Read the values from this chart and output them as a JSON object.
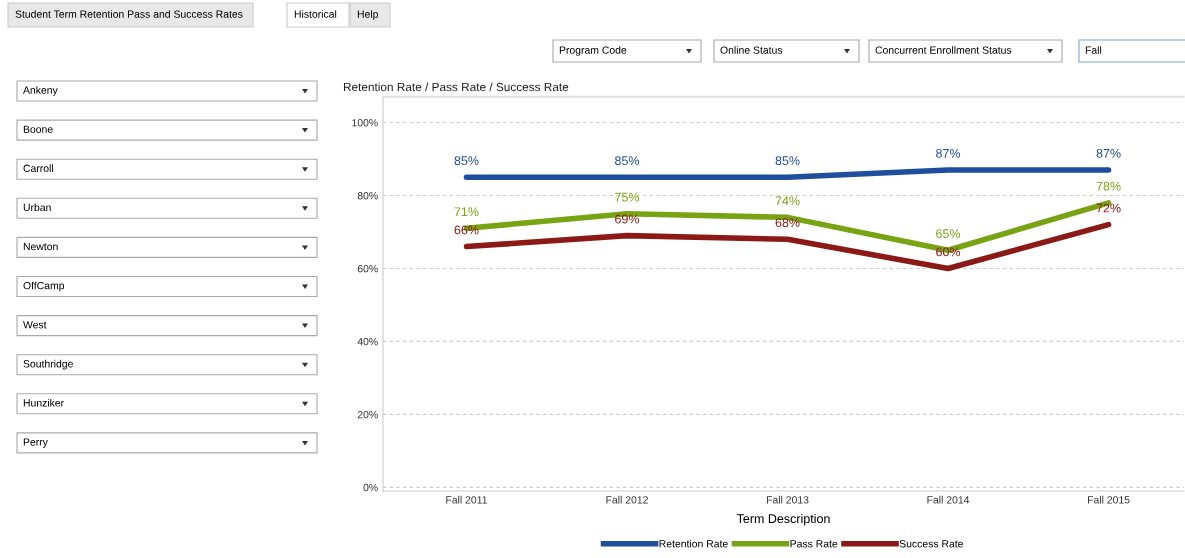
{
  "chart_data": {
    "type": "line",
    "title": "Retention Rate / Pass Rate / Success Rate",
    "xlabel": "Term Description",
    "categories": [
      "Fall 2011",
      "Fall 2012",
      "Fall 2013",
      "Fall 2014",
      "Fall 2015"
    ],
    "series": [
      {
        "name": "Retention Rate",
        "color": "#1f4e9c",
        "values": [
          85,
          85,
          85,
          87,
          87
        ],
        "value_labels": [
          "85%",
          "85%",
          "85%",
          "87%",
          "87%"
        ]
      },
      {
        "name": "Pass Rate",
        "color": "#78a414",
        "values": [
          71,
          75,
          74,
          65,
          78
        ],
        "value_labels": [
          "71%",
          "75%",
          "74%",
          "65%",
          "78%"
        ]
      },
      {
        "name": "Success Rate",
        "color": "#8b1a16",
        "values": [
          66,
          69,
          68,
          60,
          72
        ],
        "value_labels": [
          "66%",
          "69%",
          "68%",
          "60%",
          "72%"
        ]
      }
    ],
    "ylim": [
      -1,
      107
    ],
    "yticks": [
      {
        "value": 0,
        "label": "0%"
      },
      {
        "value": 20,
        "label": "20%"
      },
      {
        "value": 40,
        "label": "40%"
      },
      {
        "value": 60,
        "label": "60%"
      },
      {
        "value": 80,
        "label": "80%"
      },
      {
        "value": 100,
        "label": "100%"
      }
    ],
    "grid": "y",
    "legend": "bottom",
    "marker": "none",
    "line_style": "solid",
    "annotations": [
      "Student Term Retention Pass and Success Rates",
      "Historical",
      "Help",
      "Program Code",
      "Online Status",
      "Concurrent Enrollment Status",
      "Fall",
      "Ankeny",
      "Boone",
      "Carroll",
      "Urban",
      "Newton",
      "OffCamp",
      "West",
      "Southridge",
      "Hunziker",
      "Perry"
    ]
  }
}
